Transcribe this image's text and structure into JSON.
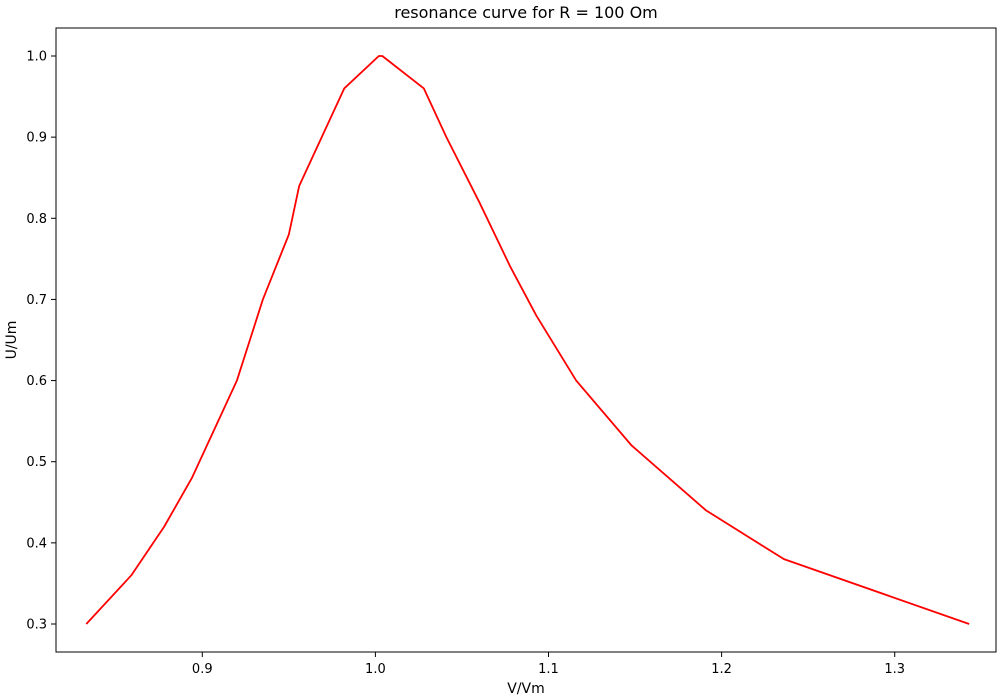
{
  "chart_data": {
    "type": "line",
    "title": "resonance curve for R = 100 Om",
    "xlabel": "V/Vm",
    "ylabel": "U/Um",
    "xlim": [
      0.8155,
      1.3585
    ],
    "ylim": [
      0.2655,
      1.0345
    ],
    "xticks": [
      0.9,
      1.0,
      1.1,
      1.2,
      1.3
    ],
    "xtick_labels": [
      "0.9",
      "1.0",
      "1.1",
      "1.2",
      "1.3"
    ],
    "yticks": [
      0.3,
      0.4,
      0.5,
      0.6,
      0.7,
      0.8,
      0.9,
      1.0
    ],
    "ytick_labels": [
      "0.3",
      "0.4",
      "0.5",
      "0.6",
      "0.7",
      "0.8",
      "0.9",
      "1.0"
    ],
    "grid": false,
    "series": [
      {
        "color": "#ff0000",
        "x": [
          0.833,
          0.859,
          0.878,
          0.894,
          0.92,
          0.935,
          0.95,
          0.956,
          0.982,
          1.002,
          1.004,
          1.028,
          1.041,
          1.06,
          1.078,
          1.093,
          1.116,
          1.148,
          1.191,
          1.236,
          1.343
        ],
        "y": [
          0.3,
          0.36,
          0.42,
          0.48,
          0.6,
          0.7,
          0.78,
          0.84,
          0.96,
          1.0,
          1.0,
          0.96,
          0.9,
          0.82,
          0.74,
          0.68,
          0.6,
          0.52,
          0.44,
          0.38,
          0.3
        ]
      }
    ]
  }
}
